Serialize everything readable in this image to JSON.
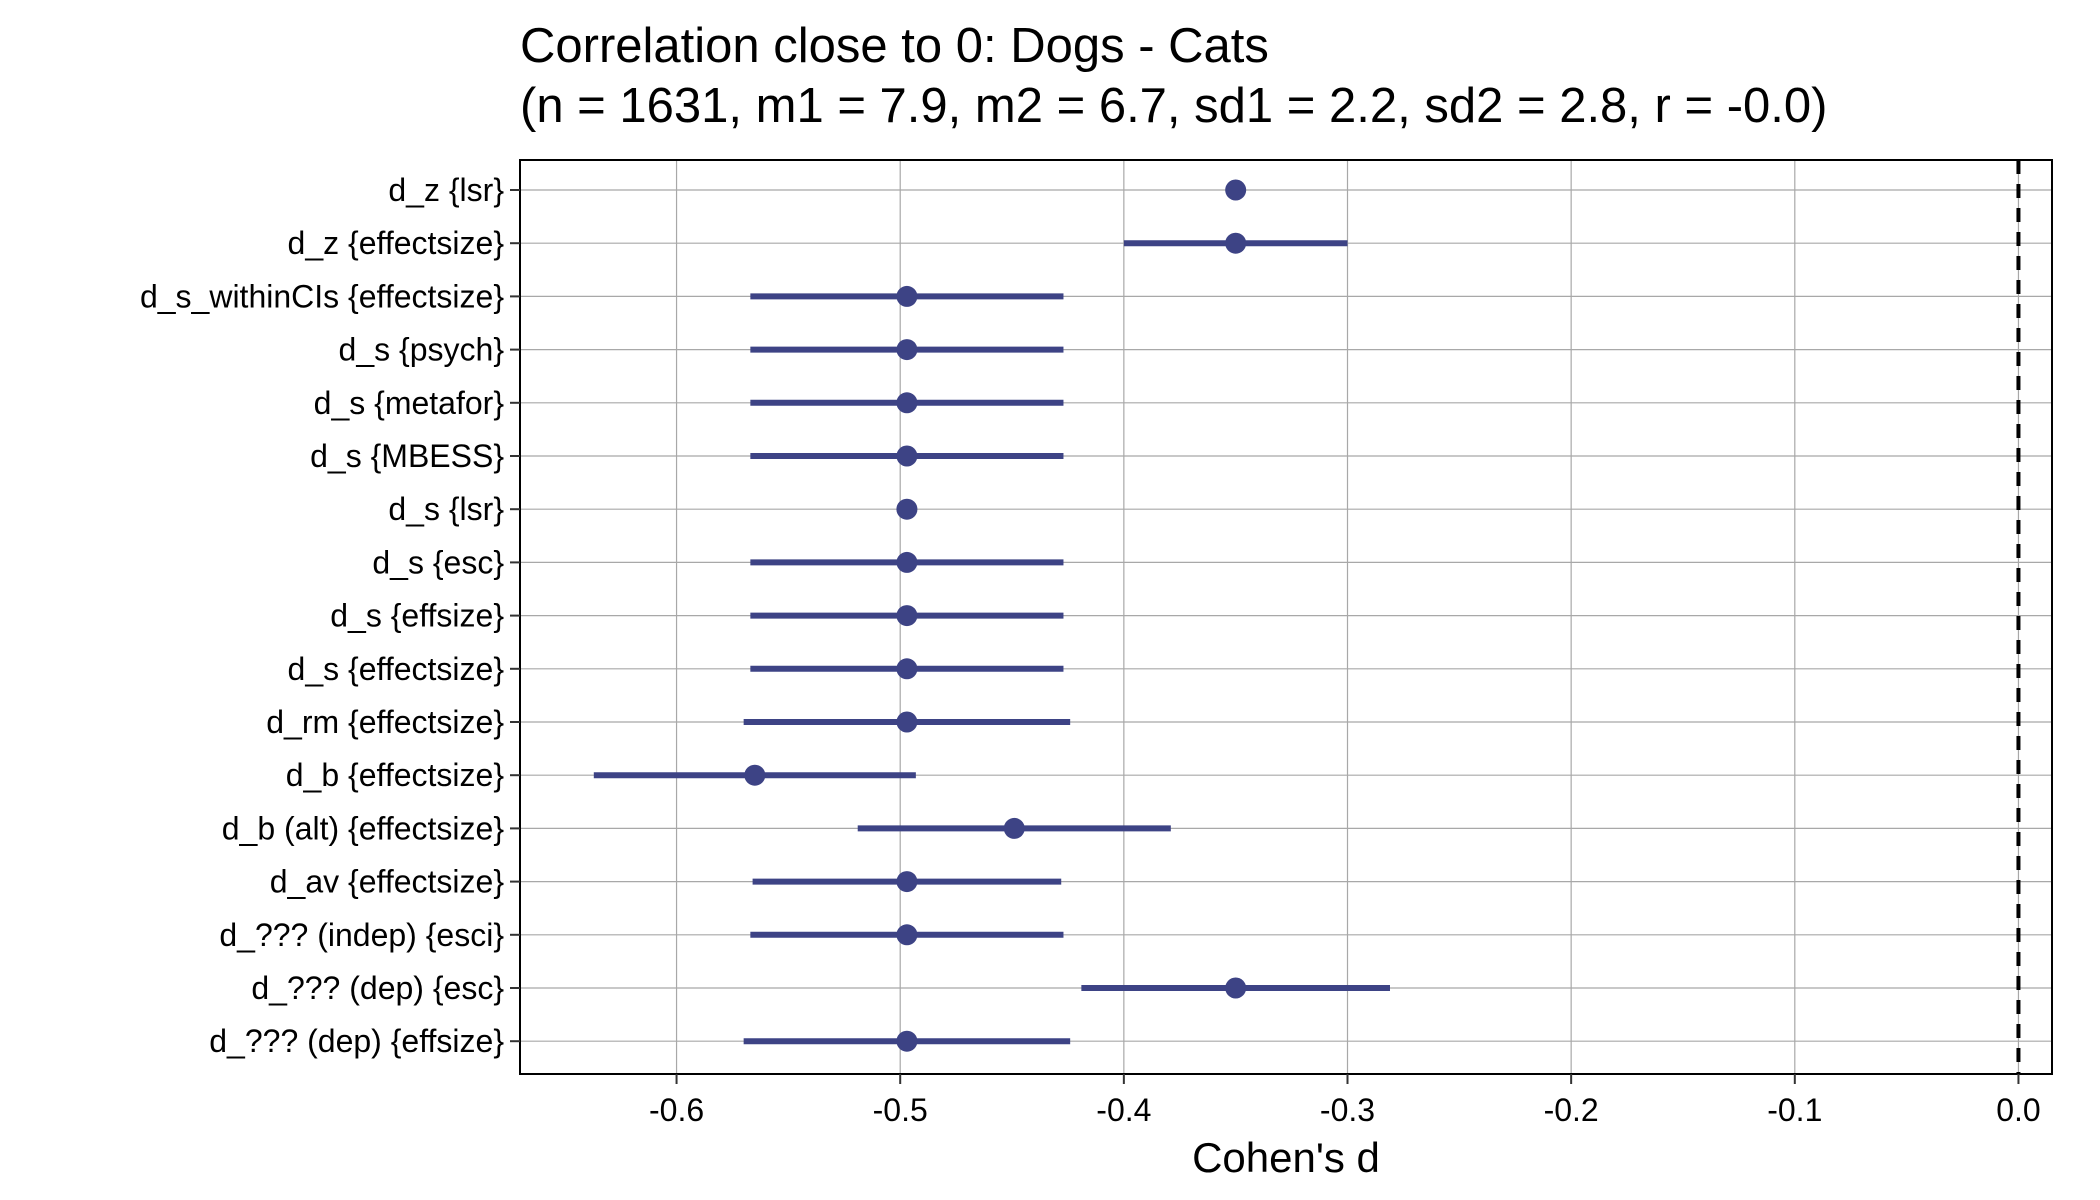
{
  "chart_data": {
    "type": "forest",
    "title_lines": [
      "Correlation close to 0: Dogs - Cats",
      "(n = 1631, m1 = 7.9, m2 = 6.7, sd1 = 2.2, sd2 = 2.8, r = -0.0)"
    ],
    "xlabel": "Cohen's d",
    "ylabel": "",
    "xlim": [
      -0.67,
      0.015
    ],
    "xticks": [
      -0.6,
      -0.5,
      -0.4,
      -0.3,
      -0.2,
      -0.1,
      0.0
    ],
    "xtick_labels": [
      "-0.6",
      "-0.5",
      "-0.4",
      "-0.3",
      "-0.2",
      "-0.1",
      "0.0"
    ],
    "reference_line": 0.0,
    "grid": true,
    "point_color": "#3d4385",
    "rows": [
      {
        "label": "d_z {lsr}",
        "estimate": -0.35,
        "ci_low": null,
        "ci_high": null
      },
      {
        "label": "d_z {effectsize}",
        "estimate": -0.35,
        "ci_low": -0.4,
        "ci_high": -0.3
      },
      {
        "label": "d_s_withinCIs {effectsize}",
        "estimate": -0.497,
        "ci_low": -0.567,
        "ci_high": -0.427
      },
      {
        "label": "d_s {psych}",
        "estimate": -0.497,
        "ci_low": -0.567,
        "ci_high": -0.427
      },
      {
        "label": "d_s {metafor}",
        "estimate": -0.497,
        "ci_low": -0.567,
        "ci_high": -0.427
      },
      {
        "label": "d_s {MBESS}",
        "estimate": -0.497,
        "ci_low": -0.567,
        "ci_high": -0.427
      },
      {
        "label": "d_s {lsr}",
        "estimate": -0.497,
        "ci_low": null,
        "ci_high": null
      },
      {
        "label": "d_s {esc}",
        "estimate": -0.497,
        "ci_low": -0.567,
        "ci_high": -0.427
      },
      {
        "label": "d_s {effsize}",
        "estimate": -0.497,
        "ci_low": -0.567,
        "ci_high": -0.427
      },
      {
        "label": "d_s {effectsize}",
        "estimate": -0.497,
        "ci_low": -0.567,
        "ci_high": -0.427
      },
      {
        "label": "d_rm {effectsize}",
        "estimate": -0.497,
        "ci_low": -0.57,
        "ci_high": -0.424
      },
      {
        "label": "d_b {effectsize}",
        "estimate": -0.565,
        "ci_low": -0.637,
        "ci_high": -0.493
      },
      {
        "label": "d_b (alt) {effectsize}",
        "estimate": -0.449,
        "ci_low": -0.519,
        "ci_high": -0.379
      },
      {
        "label": "d_av {effectsize}",
        "estimate": -0.497,
        "ci_low": -0.566,
        "ci_high": -0.428
      },
      {
        "label": "d_??? (indep) {esci}",
        "estimate": -0.497,
        "ci_low": -0.567,
        "ci_high": -0.427
      },
      {
        "label": "d_??? (dep) {esc}",
        "estimate": -0.35,
        "ci_low": -0.419,
        "ci_high": -0.281
      },
      {
        "label": "d_??? (dep) {effsize}",
        "estimate": -0.497,
        "ci_low": -0.57,
        "ci_high": -0.424
      }
    ]
  }
}
